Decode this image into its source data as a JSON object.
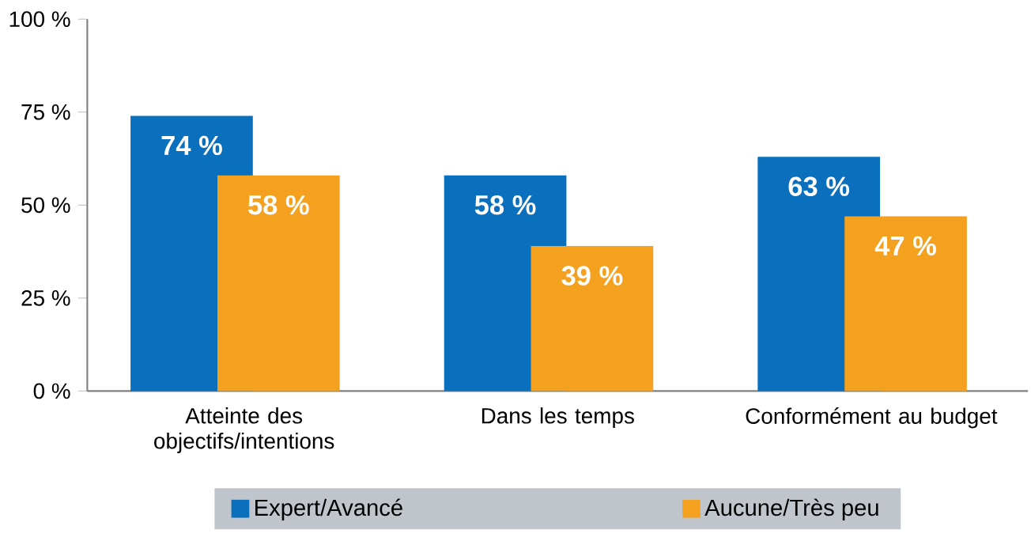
{
  "chart_data": {
    "type": "bar",
    "categories": [
      "Atteinte des objectifs/intentions",
      "Dans les temps",
      "Conformément au budget"
    ],
    "series": [
      {
        "name": "Expert/Avancé",
        "color": "#0a6fbd",
        "values": [
          74,
          58,
          63
        ],
        "value_labels": [
          "74 %",
          "58 %",
          "63 %"
        ]
      },
      {
        "name": "Aucune/Très peu",
        "color": "#f4a11f",
        "values": [
          58,
          39,
          47
        ],
        "value_labels": [
          "58 %",
          "39 %",
          "47 %"
        ]
      }
    ],
    "ylim": [
      0,
      100
    ],
    "yticks": [
      {
        "value": 0,
        "label": "0 %"
      },
      {
        "value": 25,
        "label": "25 %"
      },
      {
        "value": 50,
        "label": "50 %"
      },
      {
        "value": 75,
        "label": "75 %"
      },
      {
        "value": 100,
        "label": "100 %"
      }
    ],
    "grid": false,
    "legend": "bottom"
  }
}
